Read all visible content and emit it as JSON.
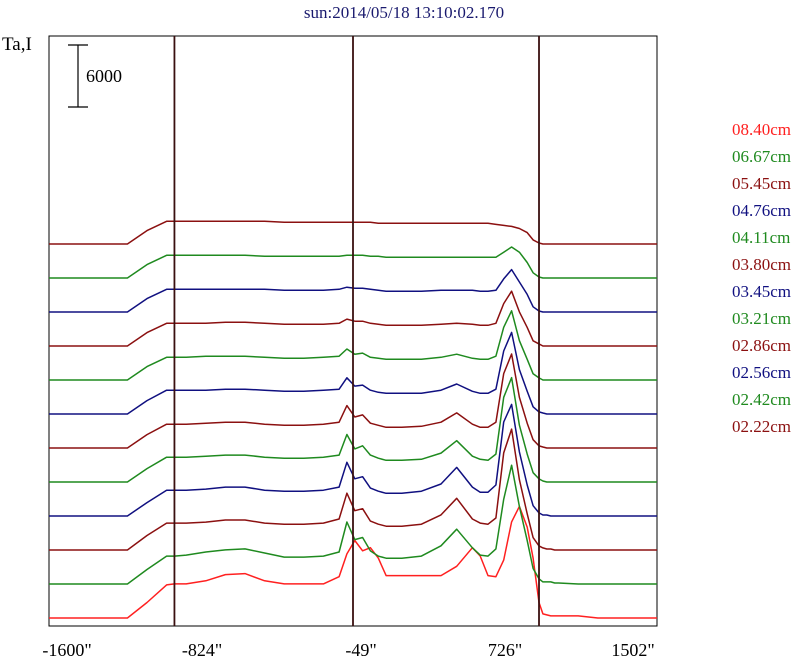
{
  "chart_data": {
    "type": "line",
    "title": "sun:2014/05/18 13:10:02.170",
    "ylabel": "Ta,I",
    "xlim": [
      -1600,
      1502
    ],
    "x_ticks": [
      "-1600\"",
      "-824\"",
      "-49\"",
      "726\"",
      "1502\""
    ],
    "vertical_markers": [
      -960,
      -49,
      900
    ],
    "scale_bar": {
      "label": "6000",
      "value": 6000
    },
    "x": [
      -1600,
      -1400,
      -1200,
      -1100,
      -1000,
      -960,
      -900,
      -800,
      -700,
      -600,
      -500,
      -400,
      -300,
      -200,
      -120,
      -80,
      -40,
      0,
      40,
      80,
      120,
      200,
      300,
      400,
      480,
      560,
      600,
      640,
      680,
      720,
      760,
      800,
      840,
      870,
      900,
      920,
      940,
      960,
      980,
      1000,
      1100,
      1200,
      1300,
      1502
    ],
    "series": [
      {
        "name": "08.40cm",
        "color": "#ff2020",
        "offset": 0,
        "values": [
          0,
          0,
          0,
          1500,
          3200,
          3300,
          3300,
          3600,
          4200,
          4300,
          3600,
          3300,
          3300,
          3300,
          4000,
          6200,
          7500,
          6500,
          6800,
          5800,
          4100,
          4100,
          4100,
          4100,
          5000,
          6800,
          6000,
          4100,
          4000,
          5600,
          9300,
          10800,
          8800,
          5800,
          1500,
          400,
          300,
          200,
          200,
          200,
          200,
          0,
          0,
          0
        ]
      },
      {
        "name": "06.67cm",
        "color": "#1f8a1f",
        "offset": 1,
        "values": [
          0,
          0,
          0,
          1400,
          2700,
          2700,
          2800,
          3100,
          3300,
          3400,
          3000,
          2600,
          2600,
          2700,
          3100,
          6000,
          4300,
          4500,
          3200,
          2700,
          2500,
          2500,
          2700,
          3700,
          5300,
          3500,
          2800,
          2700,
          3400,
          8200,
          11500,
          7500,
          4200,
          1500,
          500,
          200,
          200,
          200,
          100,
          100,
          0,
          0,
          0,
          0
        ]
      },
      {
        "name": "05.45cm",
        "color": "#8b1010",
        "offset": 2,
        "values": [
          0,
          0,
          0,
          1400,
          2600,
          2600,
          2600,
          2700,
          2900,
          2900,
          2600,
          2500,
          2500,
          2600,
          3000,
          5500,
          3800,
          4000,
          2800,
          2500,
          2300,
          2300,
          2500,
          3400,
          5000,
          3000,
          2600,
          2500,
          3100,
          9400,
          11700,
          6800,
          3500,
          1200,
          400,
          200,
          100,
          100,
          0,
          0,
          0,
          0,
          0,
          0
        ]
      },
      {
        "name": "04.76cm",
        "color": "#101080",
        "offset": 3,
        "values": [
          0,
          0,
          0,
          1300,
          2500,
          2500,
          2500,
          2600,
          2800,
          2800,
          2500,
          2400,
          2400,
          2500,
          2800,
          5200,
          3600,
          3800,
          2700,
          2400,
          2200,
          2200,
          2400,
          3100,
          4700,
          2800,
          2300,
          2300,
          3000,
          9100,
          10800,
          6200,
          3000,
          1000,
          300,
          100,
          100,
          0,
          0,
          0,
          0,
          0,
          0,
          0
        ]
      },
      {
        "name": "04.11cm",
        "color": "#1f8a1f",
        "offset": 4,
        "values": [
          0,
          0,
          0,
          1300,
          2400,
          2400,
          2400,
          2500,
          2600,
          2600,
          2400,
          2300,
          2300,
          2400,
          2600,
          4600,
          3200,
          3500,
          2600,
          2300,
          2100,
          2100,
          2200,
          2800,
          4000,
          2500,
          2200,
          2100,
          2700,
          8200,
          10100,
          5500,
          2700,
          900,
          300,
          100,
          0,
          0,
          0,
          0,
          0,
          0,
          0,
          0
        ]
      },
      {
        "name": "03.80cm",
        "color": "#8b1010",
        "offset": 5,
        "values": [
          0,
          0,
          0,
          1300,
          2300,
          2300,
          2300,
          2400,
          2500,
          2500,
          2300,
          2200,
          2200,
          2300,
          2500,
          4100,
          3000,
          3200,
          2400,
          2200,
          2000,
          2000,
          2100,
          2500,
          3400,
          2300,
          2000,
          2000,
          2500,
          7200,
          9100,
          4900,
          2400,
          800,
          200,
          100,
          0,
          0,
          0,
          0,
          0,
          0,
          0,
          0
        ]
      },
      {
        "name": "03.45cm",
        "color": "#101080",
        "offset": 6,
        "values": [
          0,
          0,
          0,
          1300,
          2300,
          2300,
          2300,
          2300,
          2400,
          2400,
          2300,
          2200,
          2200,
          2300,
          2400,
          3500,
          2700,
          2800,
          2300,
          2100,
          2000,
          2000,
          2000,
          2300,
          2900,
          2200,
          2000,
          2000,
          2400,
          6100,
          7900,
          4300,
          2200,
          700,
          200,
          100,
          0,
          0,
          0,
          0,
          0,
          0,
          0,
          0
        ]
      },
      {
        "name": "03.21cm",
        "color": "#1f8a1f",
        "offset": 7,
        "values": [
          0,
          0,
          0,
          1300,
          2200,
          2200,
          2200,
          2300,
          2300,
          2300,
          2200,
          2100,
          2100,
          2200,
          2300,
          3000,
          2500,
          2600,
          2200,
          2100,
          2000,
          2000,
          2000,
          2200,
          2500,
          2100,
          2000,
          2000,
          2300,
          5100,
          6700,
          3800,
          2000,
          600,
          200,
          0,
          0,
          0,
          0,
          0,
          0,
          0,
          0,
          0
        ]
      },
      {
        "name": "02.86cm",
        "color": "#8b1010",
        "offset": 8,
        "values": [
          0,
          0,
          0,
          1300,
          2200,
          2200,
          2200,
          2200,
          2300,
          2300,
          2200,
          2100,
          2100,
          2100,
          2200,
          2600,
          2400,
          2400,
          2200,
          2100,
          2000,
          2000,
          2000,
          2100,
          2200,
          2100,
          2000,
          2000,
          2200,
          4100,
          5300,
          3300,
          1800,
          500,
          200,
          0,
          0,
          0,
          0,
          0,
          0,
          0,
          0,
          0
        ]
      },
      {
        "name": "02.56cm",
        "color": "#101080",
        "offset": 9,
        "values": [
          0,
          0,
          0,
          1300,
          2200,
          2200,
          2200,
          2200,
          2200,
          2200,
          2200,
          2100,
          2100,
          2100,
          2200,
          2400,
          2300,
          2300,
          2200,
          2100,
          2000,
          2000,
          2000,
          2100,
          2100,
          2100,
          2000,
          2000,
          2100,
          3200,
          4100,
          2900,
          1700,
          500,
          100,
          0,
          0,
          0,
          0,
          0,
          0,
          0,
          0,
          0
        ]
      },
      {
        "name": "02.42cm",
        "color": "#1f8a1f",
        "offset": 10,
        "values": [
          0,
          0,
          0,
          1300,
          2200,
          2200,
          2200,
          2200,
          2200,
          2200,
          2100,
          2100,
          2100,
          2100,
          2100,
          2200,
          2200,
          2200,
          2100,
          2100,
          2000,
          2000,
          2000,
          2000,
          2000,
          2000,
          2000,
          2000,
          2000,
          2500,
          3000,
          2500,
          1500,
          500,
          100,
          0,
          0,
          0,
          0,
          0,
          0,
          0,
          0,
          0
        ]
      },
      {
        "name": "02.22cm",
        "color": "#8b1010",
        "offset": 11,
        "values": [
          0,
          0,
          0,
          1300,
          2200,
          2200,
          2200,
          2200,
          2200,
          2200,
          2200,
          2100,
          2100,
          2100,
          2100,
          2100,
          2100,
          2100,
          2100,
          2000,
          2000,
          2000,
          2000,
          2000,
          2000,
          2000,
          2000,
          2000,
          1900,
          1800,
          1700,
          1500,
          1100,
          400,
          100,
          0,
          0,
          0,
          0,
          0,
          0,
          0,
          0,
          0
        ]
      }
    ]
  }
}
